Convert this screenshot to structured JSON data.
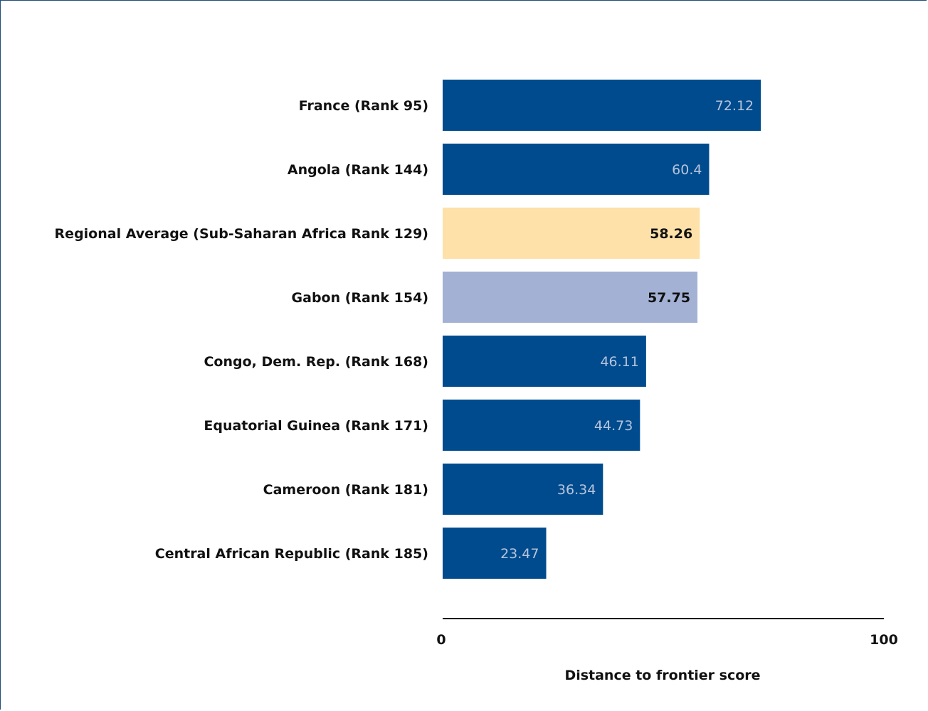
{
  "chart_data": {
    "type": "bar",
    "orientation": "horizontal",
    "title": "",
    "xlabel": "Distance to frontier score",
    "ylabel": "",
    "xlim": [
      0,
      100
    ],
    "x_ticks": [
      "0",
      "100"
    ],
    "grid": false,
    "categories": [
      "France (Rank 95)",
      "Angola (Rank 144)",
      "Regional Average (Sub-Saharan Africa Rank 129)",
      "Gabon (Rank 154)",
      "Congo, Dem. Rep. (Rank 168)",
      "Equatorial Guinea (Rank 171)",
      "Cameroon (Rank 181)",
      "Central African Republic (Rank 185)"
    ],
    "values": [
      72.12,
      60.4,
      58.26,
      57.75,
      46.11,
      44.73,
      36.34,
      23.47
    ],
    "value_labels": [
      "72.12",
      "60.4",
      "58.26",
      "57.75",
      "46.11",
      "44.73",
      "36.34",
      "23.47"
    ],
    "bar_colors": [
      "#004b8d",
      "#004b8d",
      "#fde1a9",
      "#a3b1d4",
      "#004b8d",
      "#004b8d",
      "#004b8d",
      "#004b8d"
    ],
    "label_colors": [
      "#b7c4dc",
      "#b7c4dc",
      "#111111",
      "#111111",
      "#b7c4dc",
      "#b7c4dc",
      "#b7c4dc",
      "#b7c4dc"
    ]
  }
}
